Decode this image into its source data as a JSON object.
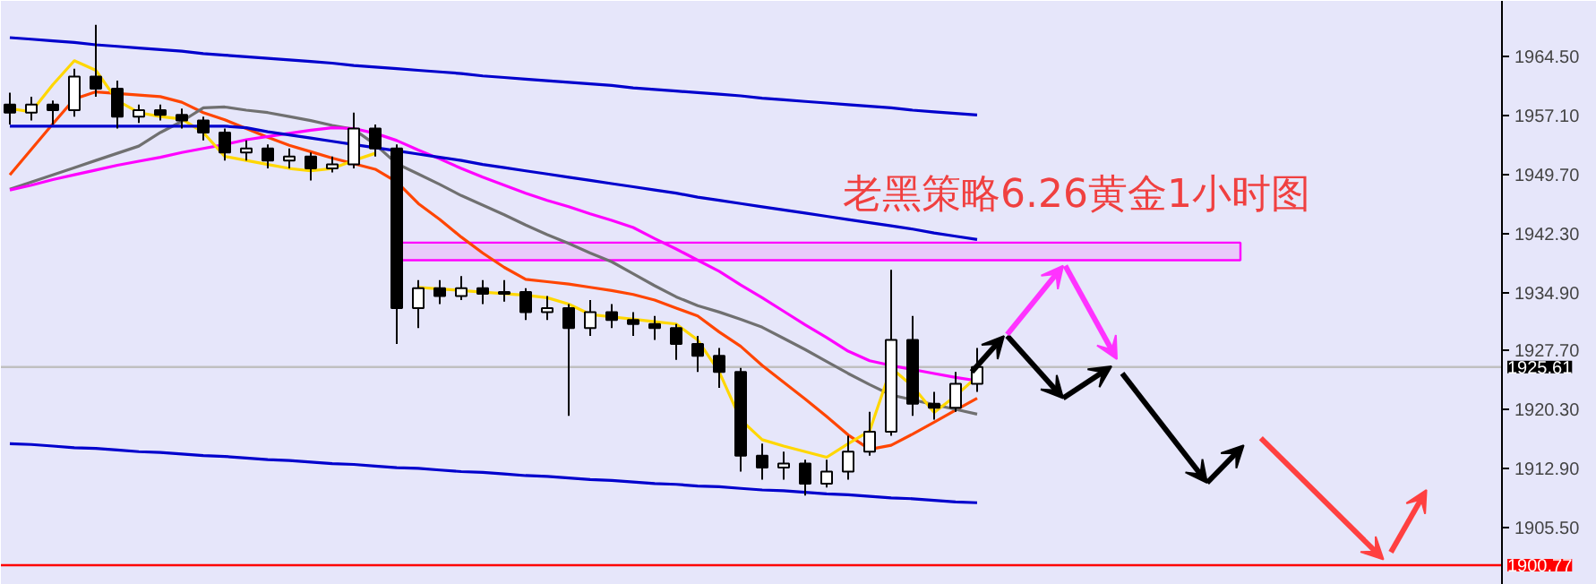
{
  "chart_data": {
    "type": "candlestick",
    "title": "老黑策略6.26黄金1小时图",
    "categories": [
      null,
      null,
      null,
      null,
      null,
      null,
      null,
      null,
      null,
      null,
      null,
      null,
      null,
      null,
      null,
      null,
      null,
      null,
      null,
      null,
      null,
      null,
      null,
      null,
      null,
      null,
      null,
      null,
      null,
      null,
      null,
      null,
      null,
      null,
      null,
      null,
      null,
      null,
      null,
      null,
      null,
      null,
      null,
      null,
      null,
      null
    ],
    "ohlc": [
      [
        1958.5,
        1960,
        1956,
        1957.5
      ],
      [
        1957.5,
        1959.5,
        1956.5,
        1958.5
      ],
      [
        1958.5,
        1959,
        1956,
        1957.8
      ],
      [
        1957.8,
        1963,
        1957,
        1962.0
      ],
      [
        1962.0,
        1968.5,
        1959.5,
        1960.5
      ],
      [
        1960.5,
        1961.5,
        1955.5,
        1957.0
      ],
      [
        1957.0,
        1958.5,
        1956.2,
        1957.8
      ],
      [
        1957.8,
        1958.5,
        1956.5,
        1957.2
      ],
      [
        1957.2,
        1958,
        1955.5,
        1956.5
      ],
      [
        1956.5,
        1957,
        1954,
        1955.0
      ],
      [
        1955.0,
        1955.5,
        1951.5,
        1952.5
      ],
      [
        1952.5,
        1954,
        1951.5,
        1953.0
      ],
      [
        1953.0,
        1953.5,
        1950.5,
        1951.5
      ],
      [
        1951.5,
        1953,
        1950.5,
        1952.0
      ],
      [
        1952.0,
        1952.5,
        1949.0,
        1950.5
      ],
      [
        1950.5,
        1952,
        1950,
        1951.0
      ],
      [
        1951.0,
        1957.5,
        1950.5,
        1955.5
      ],
      [
        1955.5,
        1956,
        1952,
        1953.0
      ],
      [
        1953.0,
        1953.5,
        1928.5,
        1933.0
      ],
      [
        1933.0,
        1936.5,
        1930.5,
        1935.5
      ],
      [
        1935.5,
        1936.5,
        1933.5,
        1934.5
      ],
      [
        1934.5,
        1937,
        1934,
        1935.5
      ],
      [
        1935.5,
        1936.5,
        1933.5,
        1934.8
      ],
      [
        1934.8,
        1936.5,
        1933.8,
        1935.0
      ],
      [
        1935.0,
        1935.5,
        1931.5,
        1932.5
      ],
      [
        1932.5,
        1934.5,
        1931.5,
        1933.0
      ],
      [
        1933.0,
        1933.5,
        1919.5,
        1930.5
      ],
      [
        1930.5,
        1934,
        1929.5,
        1932.5
      ],
      [
        1932.5,
        1933.5,
        1930.5,
        1931.5
      ],
      [
        1931.5,
        1932.5,
        1929.5,
        1931.0
      ],
      [
        1931.0,
        1932,
        1929,
        1930.5
      ],
      [
        1930.5,
        1931,
        1926.5,
        1928.5
      ],
      [
        1928.5,
        1929.5,
        1925,
        1927.0
      ],
      [
        1927.0,
        1928,
        1923,
        1925.0
      ],
      [
        1925.0,
        1925.5,
        1912.5,
        1914.5
      ],
      [
        1914.5,
        1916,
        1911.5,
        1913.0
      ],
      [
        1913.0,
        1915,
        1911.5,
        1913.5
      ],
      [
        1913.5,
        1914,
        1909.5,
        1911.0
      ],
      [
        1911.0,
        1914,
        1910.5,
        1912.5
      ],
      [
        1912.5,
        1917,
        1911.5,
        1915.0
      ],
      [
        1915.0,
        1920,
        1914.5,
        1917.5
      ],
      [
        1917.5,
        1937.8,
        1917,
        1929.0
      ],
      [
        1929.0,
        1932,
        1919.5,
        1921.0
      ],
      [
        1921.0,
        1922.5,
        1919,
        1920.5
      ],
      [
        1920.5,
        1925,
        1920,
        1923.5
      ],
      [
        1923.5,
        1928,
        1922.5,
        1925.6
      ]
    ],
    "series": [
      {
        "type": "line",
        "color": "#ff4500",
        "values": [
          1949.7,
          1952.9,
          1956.1,
          1959.2,
          1960.1,
          1959.9,
          1959.7,
          1959.5,
          1958.8,
          1957.5,
          1956.6,
          1955.5,
          1954.4,
          1953.4,
          1952.6,
          1951.8,
          1951.1,
          1950.4,
          1948.8,
          1946.1,
          1944.1,
          1941.9,
          1939.9,
          1938.1,
          1936.6,
          1936.3,
          1936.0,
          1935.6,
          1935.2,
          1934.7,
          1934.0,
          1933.0,
          1932.0,
          1930.0,
          1928.2,
          1925.8,
          1923.7,
          1921.6,
          1919.4,
          1917.1,
          1915.3,
          1915.8,
          1917.2,
          1918.7,
          1920.2,
          1921.7
        ]
      },
      {
        "type": "line",
        "color": "#707070",
        "values": [
          1947.9,
          1948.8,
          1949.7,
          1950.6,
          1951.5,
          1952.4,
          1953.3,
          1955.0,
          1956.4,
          1958.1,
          1958.2,
          1957.8,
          1957.5,
          1957.0,
          1956.5,
          1955.9,
          1955.4,
          1953.5,
          1951.1,
          1949.8,
          1948.5,
          1947.1,
          1945.9,
          1944.7,
          1943.4,
          1942.2,
          1941.1,
          1939.9,
          1938.8,
          1937.3,
          1935.8,
          1934.4,
          1933.3,
          1932.5,
          1931.6,
          1930.6,
          1929.2,
          1927.8,
          1926.3,
          1924.8,
          1923.4,
          1922.1,
          1921.5,
          1920.9,
          1920.3,
          1919.7
        ]
      },
      {
        "type": "line",
        "color": "#ff00ff",
        "values": [
          1947.8,
          1948.4,
          1949.1,
          1949.7,
          1950.3,
          1950.9,
          1951.4,
          1951.9,
          1952.5,
          1953.0,
          1953.5,
          1954.1,
          1954.5,
          1954.9,
          1955.3,
          1955.6,
          1955.5,
          1954.9,
          1954.0,
          1952.8,
          1951.7,
          1950.5,
          1949.4,
          1948.4,
          1947.4,
          1946.5,
          1945.7,
          1944.8,
          1944.0,
          1943.1,
          1941.7,
          1940.4,
          1939.0,
          1937.6,
          1935.9,
          1934.3,
          1932.6,
          1930.9,
          1929.3,
          1927.6,
          1926.4,
          1925.8,
          1925.3,
          1924.8,
          1924.3,
          1923.9
        ]
      },
      {
        "type": "line",
        "color": "#ffd700",
        "values": [
          1958.0,
          1957.6,
          1961.0,
          1964.0,
          1962.8,
          1959.0,
          1957.5,
          1957.0,
          1956.7,
          1955.0,
          1952.0,
          1951.5,
          1951.0,
          1950.5,
          1950.2,
          1950.5,
          1951.5,
          1952.4,
          null,
          1935.6,
          1935.4,
          1935.2,
          1935.0,
          1934.8,
          1934.6,
          1934.3,
          1933.5,
          1932.2,
          1931.9,
          1931.6,
          1931.3,
          1931.0,
          1929.0,
          1925.0,
          1919.0,
          1916.5,
          1915.7,
          1915.0,
          1914.3,
          1916.0,
          1917.6,
          1925.5,
          1923.2,
          1919.9,
          1922.0,
          1924.4
        ]
      },
      {
        "type": "line",
        "color": "#0000cd",
        "values": [
          1966.9,
          1966.7,
          1966.5,
          1966.3,
          1966.0,
          1965.8,
          1965.6,
          1965.4,
          1965.2,
          1964.9,
          1964.7,
          1964.5,
          1964.3,
          1964.1,
          1963.9,
          1963.7,
          1963.4,
          1963.2,
          1963.0,
          1962.8,
          1962.6,
          1962.4,
          1962.1,
          1961.9,
          1961.7,
          1961.5,
          1961.3,
          1961.1,
          1960.9,
          1960.6,
          1960.4,
          1960.2,
          1960.0,
          1959.8,
          1959.6,
          1959.3,
          1959.1,
          1958.9,
          1958.7,
          1958.5,
          1958.3,
          1958.1,
          1957.8,
          1957.6,
          1957.4,
          1957.2
        ]
      },
      {
        "type": "line",
        "color": "#0000cd",
        "values": [
          1916.0,
          1915.9,
          1915.7,
          1915.5,
          1915.4,
          1915.2,
          1915.0,
          1914.9,
          1914.7,
          1914.5,
          1914.4,
          1914.2,
          1914.0,
          1913.9,
          1913.7,
          1913.5,
          1913.4,
          1913.2,
          1913.0,
          1912.9,
          1912.7,
          1912.5,
          1912.4,
          1912.2,
          1912.0,
          1911.9,
          1911.7,
          1911.5,
          1911.4,
          1911.2,
          1911.0,
          1910.9,
          1910.7,
          1910.6,
          1910.4,
          1910.2,
          1910.1,
          1909.9,
          1909.7,
          1909.6,
          1909.4,
          1909.2,
          1909.1,
          1908.9,
          1908.7,
          1908.6
        ]
      },
      {
        "type": "line",
        "color": "#0000cd",
        "values": [
          1955.8,
          1955.8,
          1955.8,
          1955.8,
          1955.8,
          1955.8,
          1955.8,
          1955.8,
          1955.8,
          1955.8,
          1955.8,
          1955.6,
          1955.1,
          1954.7,
          1954.3,
          1953.9,
          1953.5,
          1953.1,
          1952.7,
          1952.3,
          1951.9,
          1951.5,
          1951.0,
          1950.6,
          1950.2,
          1949.8,
          1949.4,
          1949.0,
          1948.6,
          1948.2,
          1947.8,
          1947.4,
          1946.9,
          1946.5,
          1946.1,
          1945.7,
          1945.3,
          1944.9,
          1944.5,
          1944.1,
          1943.7,
          1943.3,
          1942.9,
          1942.4,
          1942.0,
          1941.6
        ]
      }
    ],
    "bands": [
      {
        "axis": "y",
        "from": 1939.0,
        "to": 1941.2,
        "color": "#ff00ff"
      }
    ],
    "ref_lines": [
      {
        "axis": "y",
        "value": 1925.61,
        "label": "1925.61",
        "color": "#c0c0c0"
      },
      {
        "axis": "y",
        "value": 1900.77,
        "label": "1900.77",
        "color": "#ff0000"
      }
    ],
    "ylim": [
      1898.3,
      1971.5
    ],
    "yticks": [
      {
        "value": 1905.5,
        "label": "1905.50"
      },
      {
        "value": 1912.9,
        "label": "1912.90"
      },
      {
        "value": 1920.3,
        "label": "1920.30"
      },
      {
        "value": 1927.7,
        "label": "1927.70"
      },
      {
        "value": 1934.9,
        "label": "1934.90"
      },
      {
        "value": 1942.3,
        "label": "1942.30"
      },
      {
        "value": 1949.7,
        "label": "1949.70"
      },
      {
        "value": 1957.1,
        "label": "1957.10"
      },
      {
        "value": 1964.5,
        "label": "1964.50"
      }
    ],
    "tick_labels": "y",
    "grid": false
  }
}
